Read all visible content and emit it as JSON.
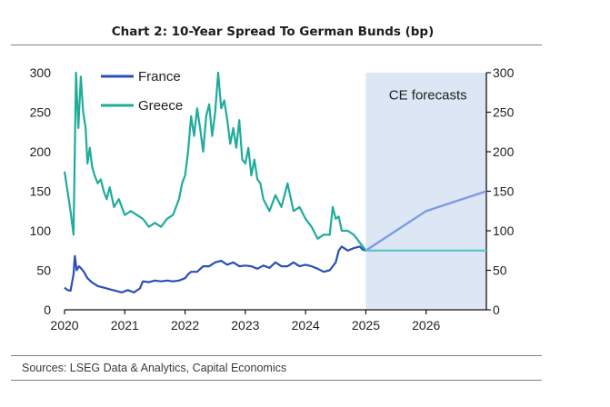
{
  "chart_data": {
    "type": "line",
    "title": "Chart 2: 10-Year Spread To German Bunds (bp)",
    "source": "Sources: LSEG Data & Analytics, Capital Economics",
    "forecast_label": "CE forecasts",
    "x_ticks": [
      "2020",
      "2021",
      "2022",
      "2023",
      "2024",
      "2025",
      "2026"
    ],
    "xlim": [
      2020,
      2027
    ],
    "ylim": [
      0,
      300
    ],
    "y_ticks": [
      "0",
      "50",
      "100",
      "150",
      "200",
      "250",
      "300"
    ],
    "forecast_start": 2025,
    "grid": false,
    "legend_position": "top-left",
    "colors": {
      "france": "#2a4fb8",
      "greece": "#20ab9b",
      "france_forecast": "#7c9be2",
      "greece_forecast": "#62c7c8",
      "forecast_shade": "#dce6f5"
    },
    "series": [
      {
        "name": "France",
        "x": [
          2020.0,
          2020.05,
          2020.1,
          2020.15,
          2020.17,
          2020.2,
          2020.24,
          2020.28,
          2020.32,
          2020.38,
          2020.45,
          2020.55,
          2020.65,
          2020.75,
          2020.85,
          2020.95,
          2021.05,
          2021.15,
          2021.25,
          2021.3,
          2021.4,
          2021.5,
          2021.6,
          2021.7,
          2021.8,
          2021.9,
          2022.0,
          2022.05,
          2022.1,
          2022.2,
          2022.3,
          2022.4,
          2022.5,
          2022.6,
          2022.7,
          2022.8,
          2022.9,
          2023.0,
          2023.1,
          2023.2,
          2023.3,
          2023.4,
          2023.5,
          2023.6,
          2023.7,
          2023.8,
          2023.9,
          2024.0,
          2024.1,
          2024.2,
          2024.3,
          2024.4,
          2024.45,
          2024.5,
          2024.55,
          2024.6,
          2024.7,
          2024.8,
          2024.9,
          2024.95,
          2025.0
        ],
        "y": [
          28,
          25,
          24,
          45,
          68,
          50,
          55,
          52,
          48,
          40,
          35,
          30,
          28,
          26,
          24,
          22,
          25,
          22,
          27,
          36,
          35,
          37,
          36,
          37,
          36,
          37,
          40,
          45,
          48,
          48,
          55,
          55,
          60,
          62,
          57,
          60,
          55,
          56,
          55,
          52,
          56,
          53,
          60,
          55,
          55,
          60,
          55,
          57,
          55,
          52,
          48,
          50,
          55,
          60,
          75,
          80,
          75,
          78,
          80,
          76,
          75
        ]
      },
      {
        "name": "Greece",
        "x": [
          2020.0,
          2020.05,
          2020.1,
          2020.15,
          2020.19,
          2020.23,
          2020.27,
          2020.31,
          2020.35,
          2020.38,
          2020.42,
          2020.46,
          2020.5,
          2020.55,
          2020.6,
          2020.65,
          2020.7,
          2020.75,
          2020.82,
          2020.9,
          2021.0,
          2021.1,
          2021.2,
          2021.3,
          2021.4,
          2021.5,
          2021.6,
          2021.7,
          2021.8,
          2021.9,
          2021.95,
          2022.0,
          2022.05,
          2022.1,
          2022.15,
          2022.2,
          2022.25,
          2022.3,
          2022.35,
          2022.4,
          2022.45,
          2022.5,
          2022.55,
          2022.6,
          2022.65,
          2022.7,
          2022.75,
          2022.8,
          2022.85,
          2022.9,
          2022.95,
          2023.0,
          2023.05,
          2023.1,
          2023.15,
          2023.2,
          2023.25,
          2023.3,
          2023.4,
          2023.5,
          2023.6,
          2023.7,
          2023.8,
          2023.9,
          2024.0,
          2024.1,
          2024.2,
          2024.3,
          2024.4,
          2024.45,
          2024.5,
          2024.55,
          2024.6,
          2024.7,
          2024.8,
          2024.9,
          2024.95,
          2025.0
        ],
        "y": [
          175,
          150,
          125,
          95,
          300,
          230,
          295,
          250,
          230,
          185,
          205,
          180,
          170,
          160,
          165,
          150,
          140,
          155,
          130,
          140,
          120,
          125,
          120,
          115,
          105,
          110,
          105,
          115,
          120,
          140,
          160,
          170,
          200,
          245,
          220,
          255,
          230,
          200,
          245,
          260,
          220,
          250,
          300,
          255,
          265,
          240,
          210,
          230,
          205,
          240,
          190,
          185,
          205,
          170,
          190,
          165,
          160,
          140,
          125,
          145,
          130,
          160,
          125,
          130,
          115,
          105,
          90,
          95,
          95,
          130,
          115,
          118,
          100,
          100,
          95,
          85,
          80,
          75
        ]
      }
    ],
    "forecasts": [
      {
        "series": "France",
        "x": [
          2025,
          2026,
          2027
        ],
        "y": [
          75,
          125,
          150
        ]
      },
      {
        "series": "Greece",
        "x": [
          2025,
          2026,
          2027
        ],
        "y": [
          75,
          75,
          75
        ]
      }
    ]
  }
}
